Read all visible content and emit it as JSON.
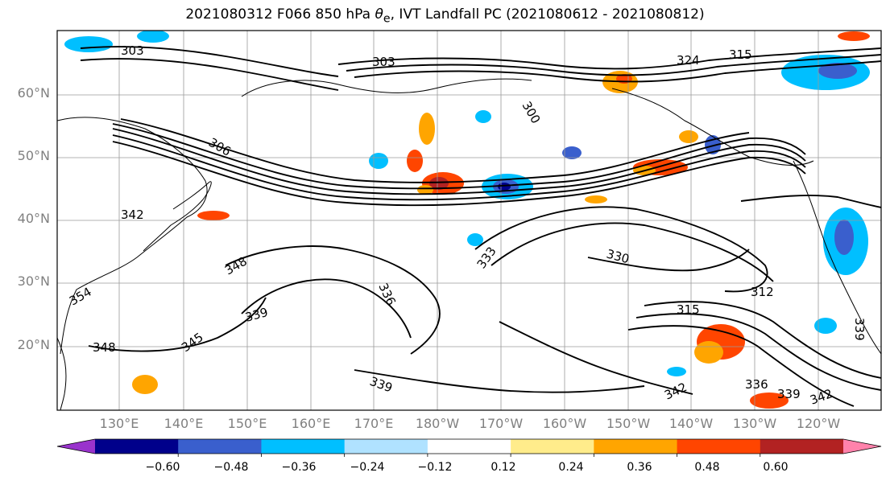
{
  "title": {
    "prefix": "2021080312 F066 850 hPa ",
    "theta_symbol": "θ",
    "theta_sub": "e",
    "suffix": ", IVT Landfall PC (2021080612 - 2021080812)"
  },
  "map": {
    "lat_labels": [
      "60°N",
      "50°N",
      "40°N",
      "30°N",
      "20°N"
    ],
    "lon_labels": [
      "130°E",
      "140°E",
      "150°E",
      "160°E",
      "170°E",
      "180°W",
      "170°W",
      "160°W",
      "150°W",
      "140°W",
      "130°W",
      "120°W"
    ],
    "contour_labels": [
      "303",
      "303",
      "324",
      "315",
      "300",
      "306",
      "342",
      "348",
      "339",
      "345",
      "348",
      "354",
      "333",
      "336",
      "330",
      "312",
      "315",
      "336",
      "339",
      "342",
      "342",
      "339",
      "339"
    ]
  },
  "colorbar": {
    "ticks": [
      "−0.60",
      "−0.48",
      "−0.36",
      "−0.24",
      "−0.12",
      "0.12",
      "0.24",
      "0.36",
      "0.48",
      "0.60"
    ],
    "colors": [
      "#9933cc",
      "#00008b",
      "#3a5fcd",
      "#00bfff",
      "#b0e2ff",
      "#ffffff",
      "#ffec8b",
      "#ffa500",
      "#ff4500",
      "#b22222",
      "#ff82ab"
    ]
  }
}
